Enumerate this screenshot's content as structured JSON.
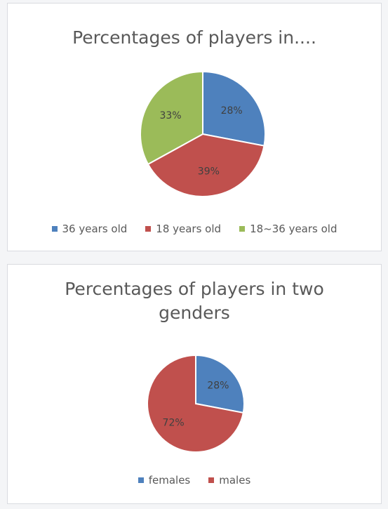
{
  "chart_data": [
    {
      "type": "pie",
      "title": "Percentages of players in....",
      "categories": [
        "36 years old",
        "18 years old",
        "18~36 years old"
      ],
      "values": [
        28,
        39,
        33
      ],
      "labels": [
        "28%",
        "39%",
        "33%"
      ],
      "colors": [
        "#4e81bd",
        "#c0504d",
        "#9bbb59"
      ],
      "legend": "bottom"
    },
    {
      "type": "pie",
      "title": "Percentages of players in two genders",
      "categories": [
        "females",
        "males"
      ],
      "values": [
        28,
        72
      ],
      "labels": [
        "28%",
        "72%"
      ],
      "colors": [
        "#4e81bd",
        "#c0504d"
      ],
      "legend": "bottom"
    }
  ]
}
